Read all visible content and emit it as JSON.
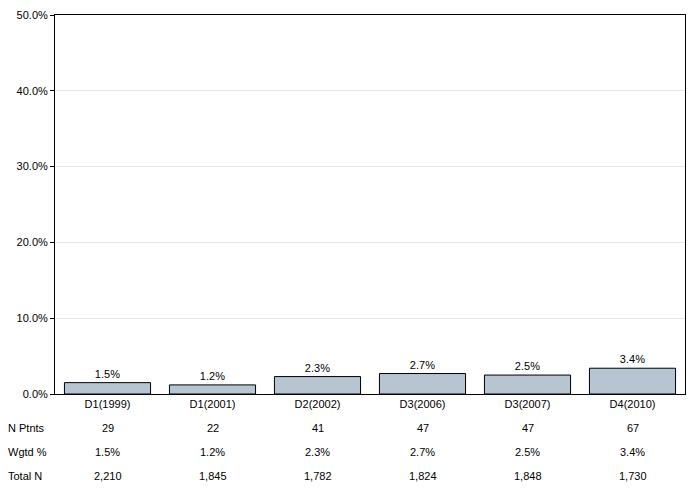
{
  "chart_data": {
    "type": "bar",
    "categories": [
      "D1(1999)",
      "D1(2001)",
      "D2(2002)",
      "D3(2006)",
      "D3(2007)",
      "D4(2010)"
    ],
    "values": [
      1.5,
      1.2,
      2.3,
      2.7,
      2.5,
      3.4
    ],
    "value_labels": [
      "1.5%",
      "1.2%",
      "2.3%",
      "2.7%",
      "2.5%",
      "3.4%"
    ],
    "data_labels": true,
    "color": "#b7c4d2",
    "ylim": [
      0,
      50
    ],
    "yticks": [
      {
        "value": 0,
        "label": "0.0%"
      },
      {
        "value": 10,
        "label": "10.0%"
      },
      {
        "value": 20,
        "label": "20.0%"
      },
      {
        "value": 30,
        "label": "30.0%"
      },
      {
        "value": 40,
        "label": "40.0%"
      },
      {
        "value": 50,
        "label": "50.0%"
      }
    ],
    "grid": true
  },
  "table": {
    "rows": [
      {
        "label": "N Ptnts",
        "values": [
          "29",
          "22",
          "41",
          "47",
          "47",
          "67"
        ]
      },
      {
        "label": "Wgtd %",
        "values": [
          "1.5%",
          "1.2%",
          "2.3%",
          "2.7%",
          "2.5%",
          "3.4%"
        ]
      },
      {
        "label": "Total N",
        "values": [
          "2,210",
          "1,845",
          "1,782",
          "1,824",
          "1,848",
          "1,730"
        ]
      }
    ]
  }
}
